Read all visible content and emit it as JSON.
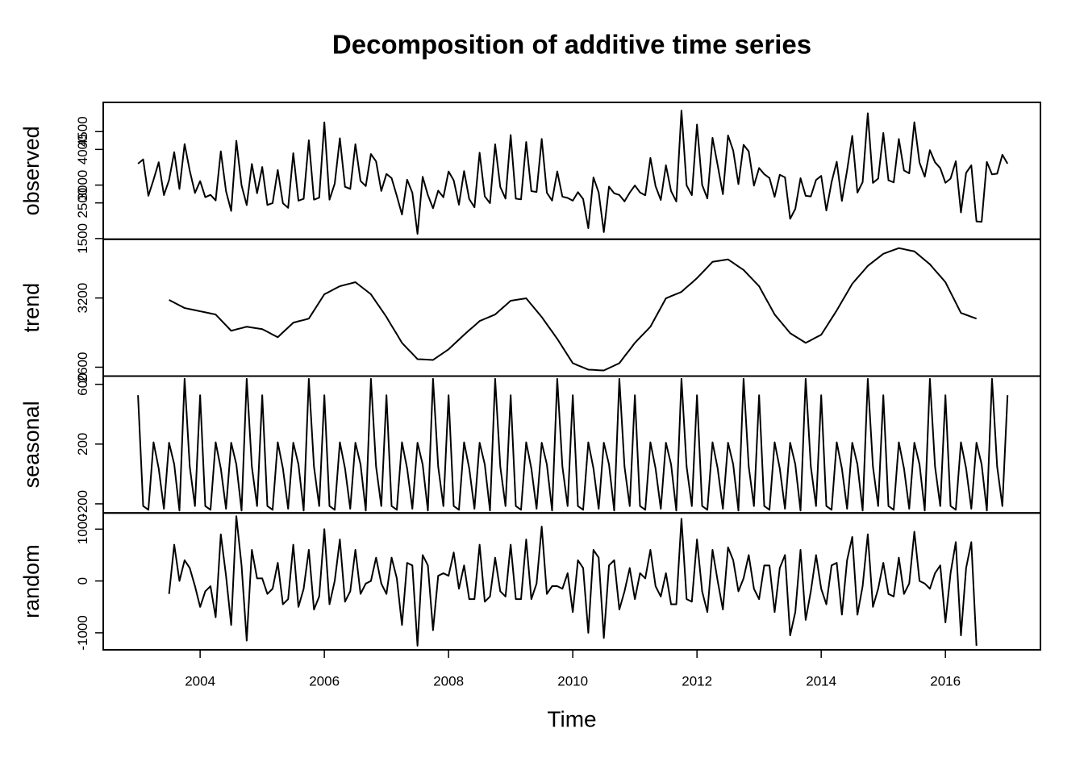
{
  "chart_data": {
    "type": "line",
    "title": "Decomposition of additive time series",
    "xlabel": "Time",
    "xlim": [
      2002.44,
      2017.53
    ],
    "xticks": [
      2004,
      2006,
      2008,
      2010,
      2012,
      2014,
      2016
    ],
    "x": [
      2003,
      2003.083,
      2003.167,
      2003.25,
      2003.333,
      2003.417,
      2003.5,
      2003.583,
      2003.667,
      2003.75,
      2003.833,
      2003.917,
      2004,
      2004.083,
      2004.167,
      2004.25,
      2004.333,
      2004.417,
      2004.5,
      2004.583,
      2004.667,
      2004.75,
      2004.833,
      2004.917,
      2005,
      2005.083,
      2005.167,
      2005.25,
      2005.333,
      2005.417,
      2005.5,
      2005.583,
      2005.667,
      2005.75,
      2005.833,
      2005.917,
      2006,
      2006.083,
      2006.167,
      2006.25,
      2006.333,
      2006.417,
      2006.5,
      2006.583,
      2006.667,
      2006.75,
      2006.833,
      2006.917,
      2007,
      2007.083,
      2007.167,
      2007.25,
      2007.333,
      2007.417,
      2007.5,
      2007.583,
      2007.667,
      2007.75,
      2007.833,
      2007.917,
      2008,
      2008.083,
      2008.167,
      2008.25,
      2008.333,
      2008.417,
      2008.5,
      2008.583,
      2008.667,
      2008.75,
      2008.833,
      2008.917,
      2009,
      2009.083,
      2009.167,
      2009.25,
      2009.333,
      2009.417,
      2009.5,
      2009.583,
      2009.667,
      2009.75,
      2009.833,
      2009.917,
      2010,
      2010.083,
      2010.167,
      2010.25,
      2010.333,
      2010.417,
      2010.5,
      2010.583,
      2010.667,
      2010.75,
      2010.833,
      2010.917,
      2011,
      2011.083,
      2011.167,
      2011.25,
      2011.333,
      2011.417,
      2011.5,
      2011.583,
      2011.667,
      2011.75,
      2011.833,
      2011.917,
      2012,
      2012.083,
      2012.167,
      2012.25,
      2012.333,
      2012.417,
      2012.5,
      2012.583,
      2012.667,
      2012.75,
      2012.833,
      2012.917,
      2013,
      2013.083,
      2013.167,
      2013.25,
      2013.333,
      2013.417,
      2013.5,
      2013.583,
      2013.667,
      2013.75,
      2013.833,
      2013.917,
      2014,
      2014.083,
      2014.167,
      2014.25,
      2014.333,
      2014.417,
      2014.5,
      2014.583,
      2014.667,
      2014.75,
      2014.833,
      2014.917,
      2015,
      2015.083,
      2015.167,
      2015.25,
      2015.333,
      2015.417,
      2015.5,
      2015.583,
      2015.667,
      2015.75,
      2015.833,
      2015.917,
      2016,
      2016.083,
      2016.167,
      2016.25,
      2016.333,
      2016.417,
      2016.5,
      2016.583,
      2016.667,
      2016.75,
      2016.833,
      2016.917,
      2017
    ],
    "series": [
      {
        "name": "observed",
        "color": "#000000",
        "ylim": [
          1480,
          5320
        ],
        "yticks": [
          1500,
          2500,
          3000,
          4000,
          4500
        ],
        "values": [
          3600,
          3720,
          2700,
          3150,
          3640,
          2720,
          3142,
          3924,
          2891,
          4150,
          3403,
          2779,
          3112,
          2661,
          2726,
          2569,
          3947,
          2830,
          2275,
          4242,
          2994,
          2438,
          3593,
          2772,
          3507,
          2442,
          2493,
          3422,
          2489,
          2361,
          3895,
          2562,
          2614,
          4258,
          2590,
          2647,
          4759,
          2590,
          3039,
          4314,
          2951,
          2892,
          4146,
          3116,
          2972,
          3869,
          3665,
          2836,
          3312,
          3195,
          2696,
          2173,
          3151,
          2784,
          1629,
          3232,
          2720,
          2350,
          2843,
          2659,
          3382,
          3132,
          2449,
          3393,
          2608,
          2377,
          3909,
          2683,
          2493,
          4144,
          2946,
          2621,
          4403,
          2618,
          2600,
          4209,
          2830,
          2806,
          4294,
          2786,
          2564,
          3383,
          2675,
          2640,
          2562,
          2801,
          2608,
          1791,
          3214,
          2791,
          1681,
          2957,
          2769,
          2722,
          2543,
          2787,
          2988,
          2793,
          2714,
          3763,
          2970,
          2582,
          3556,
          2830,
          2539,
          5090,
          2992,
          2717,
          4699,
          3004,
          2626,
          4325,
          3557,
          2744,
          4393,
          3968,
          3028,
          4130,
          3945,
          2984,
          3479,
          3305,
          3199,
          2669,
          3290,
          3216,
          2054,
          2331,
          3194,
          2698,
          2683,
          3143,
          3258,
          2286,
          3082,
          3654,
          2556,
          3413,
          4382,
          2789,
          3081,
          5015,
          3062,
          3183,
          4460,
          3134,
          3076,
          4294,
          3410,
          3330,
          4763,
          3631,
          3234,
          3979,
          3639,
          3474,
          3064,
          3183,
          3669,
          2232,
          3341,
          3554,
          1980,
          1970,
          3650,
          3300,
          3320,
          3850,
          3600
        ]
      },
      {
        "name": "trend",
        "color": "#000000",
        "ylim": [
          2523,
          3709
        ],
        "yticks": [
          2600,
          3200
        ],
        "values": [
          null,
          null,
          null,
          null,
          null,
          null,
          3183,
          3160,
          3136,
          3113,
          3104,
          3094,
          3085,
          3076,
          3066,
          3057,
          3010,
          2963,
          2916,
          2928,
          2939,
          2951,
          2944,
          2937,
          2930,
          2907,
          2883,
          2860,
          2902,
          2944,
          2986,
          2998,
          3009,
          3021,
          3091,
          3162,
          3232,
          3255,
          3279,
          3302,
          3314,
          3325,
          3337,
          3302,
          3267,
          3232,
          3166,
          3101,
          3035,
          2960,
          2886,
          2811,
          2764,
          2717,
          2670,
          2668,
          2665,
          2663,
          2694,
          2724,
          2755,
          2797,
          2839,
          2881,
          2921,
          2960,
          3000,
          3019,
          3038,
          3057,
          3097,
          3136,
          3176,
          3183,
          3190,
          3197,
          3143,
          3089,
          3035,
          2972,
          2909,
          2846,
          2776,
          2705,
          2635,
          2616,
          2598,
          2579,
          2577,
          2574,
          2572,
          2593,
          2614,
          2635,
          2694,
          2752,
          2811,
          2858,
          2904,
          2951,
          3033,
          3115,
          3197,
          3216,
          3234,
          3253,
          3293,
          3332,
          3372,
          3419,
          3466,
          3513,
          3520,
          3527,
          3534,
          3504,
          3473,
          3443,
          3396,
          3349,
          3302,
          3220,
          3139,
          3057,
          3003,
          2949,
          2895,
          2867,
          2839,
          2811,
          2834,
          2858,
          2881,
          2951,
          3022,
          3092,
          3169,
          3246,
          3323,
          3375,
          3426,
          3478,
          3513,
          3548,
          3583,
          3599,
          3616,
          3632,
          3623,
          3613,
          3604,
          3567,
          3529,
          3492,
          3440,
          3389,
          3337,
          3248,
          3159,
          3070,
          3054,
          3037,
          3021,
          null,
          null,
          null,
          null,
          null,
          null
        ]
      },
      {
        "name": "seasonal",
        "color": "#000000",
        "ylim": [
          -261,
          655
        ],
        "yticks": [
          -200,
          200,
          600
        ],
        "values": [
          527,
          -215,
          -240,
          212,
          37,
          -233,
          209,
          64,
          -245,
          637,
          49,
          -215,
          527,
          -215,
          -240,
          212,
          37,
          -233,
          209,
          64,
          -245,
          637,
          49,
          -215,
          527,
          -215,
          -240,
          212,
          37,
          -233,
          209,
          64,
          -245,
          637,
          49,
          -215,
          527,
          -215,
          -240,
          212,
          37,
          -233,
          209,
          64,
          -245,
          637,
          49,
          -215,
          527,
          -215,
          -240,
          212,
          37,
          -233,
          209,
          64,
          -245,
          637,
          49,
          -215,
          527,
          -215,
          -240,
          212,
          37,
          -233,
          209,
          64,
          -245,
          637,
          49,
          -215,
          527,
          -215,
          -240,
          212,
          37,
          -233,
          209,
          64,
          -245,
          637,
          49,
          -215,
          527,
          -215,
          -240,
          212,
          37,
          -233,
          209,
          64,
          -245,
          637,
          49,
          -215,
          527,
          -215,
          -240,
          212,
          37,
          -233,
          209,
          64,
          -245,
          637,
          49,
          -215,
          527,
          -215,
          -240,
          212,
          37,
          -233,
          209,
          64,
          -245,
          637,
          49,
          -215,
          527,
          -215,
          -240,
          212,
          37,
          -233,
          209,
          64,
          -245,
          637,
          49,
          -215,
          527,
          -215,
          -240,
          212,
          37,
          -233,
          209,
          64,
          -245,
          637,
          49,
          -215,
          527,
          -215,
          -240,
          212,
          37,
          -233,
          209,
          64,
          -245,
          637,
          49,
          -215,
          527,
          -215,
          -240,
          212,
          37,
          -233,
          209,
          64,
          -245,
          637,
          49,
          -215,
          527
        ]
      },
      {
        "name": "random",
        "color": "#000000",
        "ylim": [
          -1328,
          1312
        ],
        "yticks": [
          -1000,
          0,
          1000
        ],
        "values": [
          null,
          null,
          null,
          null,
          null,
          null,
          -250,
          700,
          0,
          400,
          250,
          -100,
          -500,
          -200,
          -100,
          -700,
          900,
          100,
          -850,
          1250,
          300,
          -1150,
          600,
          50,
          50,
          -250,
          -150,
          350,
          -450,
          -350,
          700,
          -500,
          -150,
          600,
          -550,
          -300,
          1000,
          -450,
          0,
          800,
          -400,
          -200,
          600,
          -250,
          -50,
          0,
          450,
          -50,
          -250,
          450,
          50,
          -850,
          350,
          300,
          -1250,
          500,
          300,
          -950,
          100,
          150,
          100,
          550,
          -150,
          300,
          -350,
          -350,
          700,
          -400,
          -300,
          450,
          -200,
          -300,
          700,
          -350,
          -350,
          800,
          -350,
          -50,
          1050,
          -250,
          -100,
          -100,
          -150,
          150,
          -600,
          400,
          250,
          -1000,
          600,
          450,
          -1100,
          300,
          400,
          -550,
          -200,
          250,
          -350,
          150,
          50,
          600,
          -100,
          -300,
          150,
          -450,
          -450,
          1200,
          -350,
          -400,
          800,
          -200,
          -600,
          600,
          0,
          -550,
          650,
          400,
          -200,
          50,
          500,
          -150,
          -350,
          300,
          300,
          -600,
          250,
          500,
          -1050,
          -600,
          600,
          -750,
          -200,
          500,
          -150,
          -450,
          300,
          350,
          -650,
          400,
          850,
          -650,
          -100,
          900,
          -500,
          -150,
          350,
          -250,
          -300,
          450,
          -250,
          -50,
          950,
          0,
          -50,
          -150,
          150,
          300,
          -800,
          150,
          750,
          -1050,
          250,
          750,
          -1250,
          null,
          null,
          null,
          null,
          null,
          null
        ]
      }
    ]
  }
}
